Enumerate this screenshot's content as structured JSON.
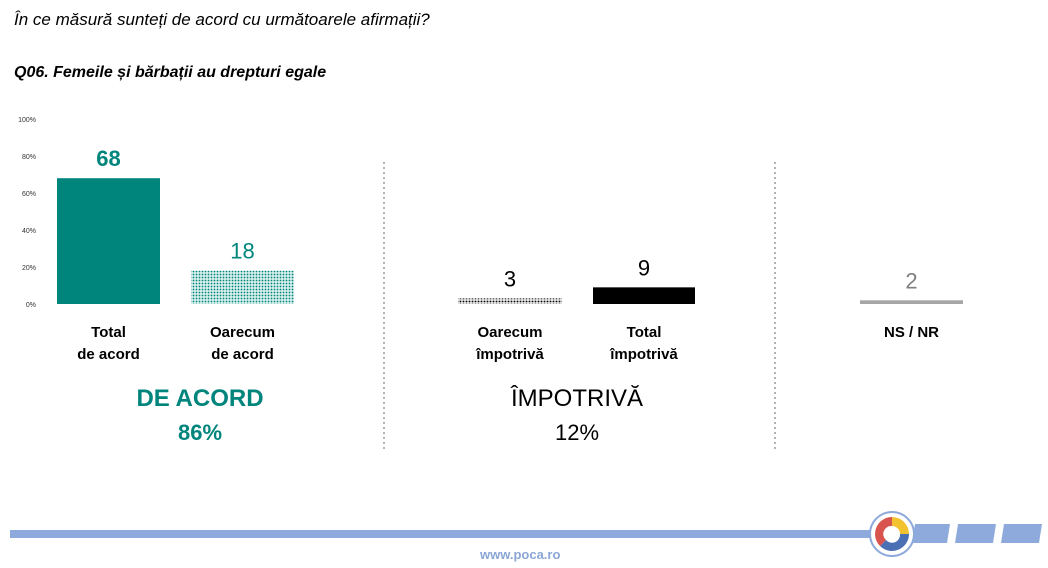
{
  "header": {
    "subtitle": "În ce măsură sunteți de acord cu următoarele afirmații?",
    "question": "Q06. Femeile și bărbații au drepturi egale"
  },
  "colors": {
    "teal": "#00857d",
    "black": "#000000",
    "gray": "#a6a6a6",
    "separator": "#9a9a9a",
    "footer_bar": "#8ea9db"
  },
  "chart_data": {
    "type": "bar",
    "title": "Q06. Femeile și bărbații au drepturi egale",
    "ylim": [
      0,
      100
    ],
    "y_ticks": [
      "0%",
      "20%",
      "40%",
      "60%",
      "80%",
      "100%"
    ],
    "y_tick_values": [
      0,
      20,
      40,
      60,
      80,
      100
    ],
    "bars": [
      {
        "id": "total-acord",
        "label_line1": "Total",
        "label_line2": "de acord",
        "value": 68,
        "value_label": "68",
        "style": "teal-solid"
      },
      {
        "id": "oarecum-acord",
        "label_line1": "Oarecum",
        "label_line2": "de acord",
        "value": 18,
        "value_label": "18",
        "style": "teal-dotted"
      },
      {
        "id": "oarecum-impotriva",
        "label_line1": "Oarecum",
        "label_line2": "împotrivă",
        "value": 3,
        "value_label": "3",
        "style": "black-dotted"
      },
      {
        "id": "total-impotriva",
        "label_line1": "Total",
        "label_line2": "împotrivă",
        "value": 9,
        "value_label": "9",
        "style": "black-solid"
      },
      {
        "id": "ns-nr",
        "label_line1": "NS / NR",
        "label_line2": "",
        "value": 2,
        "value_label": "2",
        "style": "gray-solid"
      }
    ],
    "groups": [
      {
        "id": "acord",
        "name": "DE ACORD",
        "total": "86%"
      },
      {
        "id": "impotriva",
        "name": "ÎMPOTRIVĂ",
        "total": "12%"
      }
    ]
  },
  "footer": {
    "url": "www.poca.ro",
    "logo": "poca-logo-icon"
  }
}
